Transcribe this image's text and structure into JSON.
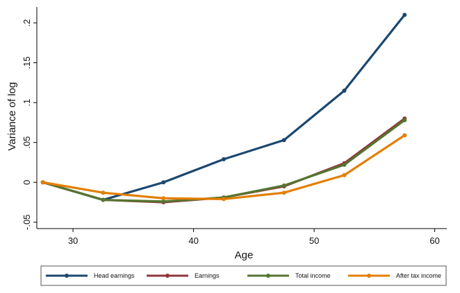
{
  "chart_data": {
    "type": "line",
    "title": "",
    "xlabel": "Age",
    "ylabel": "Variance of log",
    "x": [
      27.5,
      32.5,
      37.5,
      42.5,
      47.5,
      52.5,
      57.5
    ],
    "xlim": [
      27,
      61
    ],
    "ylim": [
      -0.058,
      0.22
    ],
    "xticks": [
      30,
      40,
      50,
      60
    ],
    "yticks": [
      -0.05,
      0,
      0.05,
      0.1,
      0.15,
      0.2
    ],
    "ytick_labels": [
      "-.05",
      "0",
      ".05",
      ".1",
      ".15",
      ".2"
    ],
    "grid": false,
    "legend_position": "bottom",
    "series": [
      {
        "name": "Head earnings",
        "color": "#1a476f",
        "values": [
          0.0,
          -0.022,
          0.0,
          0.029,
          0.053,
          0.115,
          0.21
        ]
      },
      {
        "name": "Earnings",
        "color": "#90353b",
        "values": [
          0.0,
          -0.022,
          -0.025,
          -0.019,
          -0.005,
          0.024,
          0.08
        ]
      },
      {
        "name": "Total income",
        "color": "#55752f",
        "values": [
          0.0,
          -0.022,
          -0.024,
          -0.019,
          -0.004,
          0.022,
          0.078
        ]
      },
      {
        "name": "After tax income",
        "color": "#e37e00",
        "values": [
          0.0,
          -0.013,
          -0.02,
          -0.021,
          -0.013,
          0.009,
          0.059
        ]
      }
    ]
  }
}
